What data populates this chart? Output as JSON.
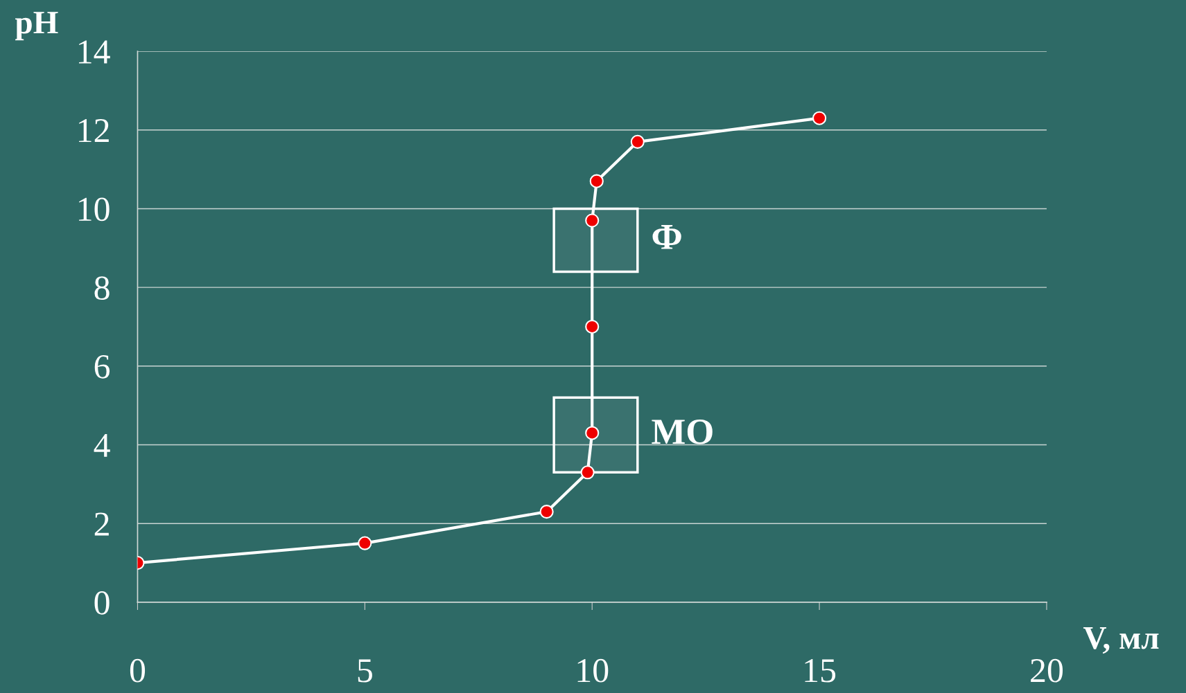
{
  "chart_data": {
    "type": "line",
    "xlabel": "V, мл",
    "ylabel": "pH",
    "series": [
      {
        "color": "#ffffff",
        "x": [
          0,
          5,
          9,
          9.9,
          10,
          10,
          10,
          10.1,
          11,
          15
        ],
        "values": [
          1.0,
          1.5,
          2.3,
          3.3,
          4.3,
          7.0,
          9.7,
          10.7,
          11.7,
          12.3
        ]
      }
    ],
    "marker": "circle",
    "line_style": "solid",
    "xlim": [
      0,
      20
    ],
    "xticks": [
      0,
      5,
      10,
      15,
      20
    ],
    "ylim": [
      0,
      14
    ],
    "yticks": [
      0,
      2,
      4,
      6,
      8,
      10,
      12,
      14
    ],
    "grid": "y",
    "bands": [
      {
        "axis": "y",
        "from": 8.4,
        "to": 10,
        "label": "Ф",
        "color": "#ffffff"
      },
      {
        "axis": "y",
        "from": 3.3,
        "to": 5.2,
        "label": "МО",
        "color": "#ffffff"
      }
    ]
  }
}
